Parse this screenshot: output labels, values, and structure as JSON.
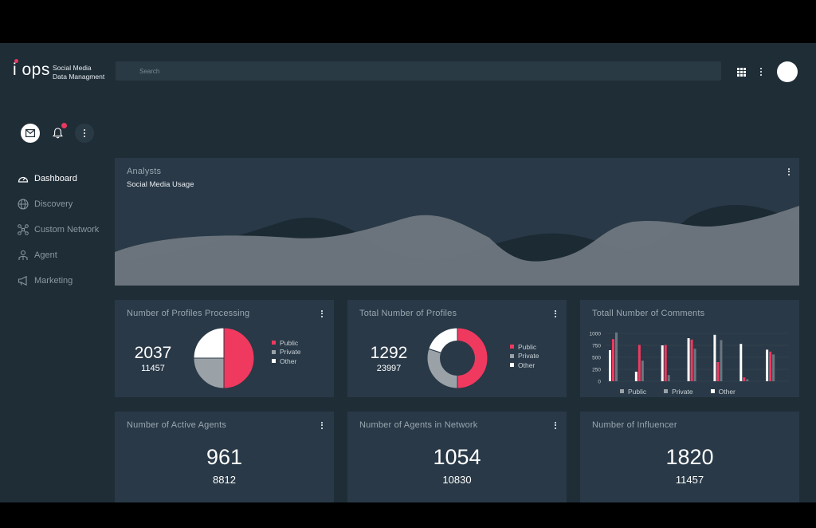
{
  "app": {
    "logo_text": "i ops",
    "subtitle_line1": "Social Media",
    "subtitle_line2": "Data Managment",
    "search_placeholder": "Search"
  },
  "sidebar": {
    "items": [
      {
        "label": "Dashboard",
        "icon": "speedometer-icon"
      },
      {
        "label": "Discovery",
        "icon": "globe-icon"
      },
      {
        "label": "Custom Network",
        "icon": "network-icon"
      },
      {
        "label": "Agent",
        "icon": "agent-icon"
      },
      {
        "label": "Marketing",
        "icon": "megaphone-icon"
      }
    ]
  },
  "analysts": {
    "title": "Analysts",
    "subtitle": "Social Media Usage"
  },
  "cards": {
    "profiles_processing": {
      "title": "Number of Profiles Processing",
      "value": "2037",
      "sub_value": "11457",
      "legend": [
        "Public",
        "Private",
        "Other"
      ]
    },
    "total_profiles": {
      "title": "Total Number of Profiles",
      "value": "1292",
      "sub_value": "23997",
      "legend": [
        "Public",
        "Private",
        "Other"
      ]
    },
    "total_comments": {
      "title": "Totall Number of Comments",
      "legend": [
        "Public",
        "Private",
        "Other"
      ]
    },
    "active_agents": {
      "title": "Number of Active Agents",
      "value": "961",
      "sub_value": "8812"
    },
    "agents_in_network": {
      "title": "Number of Agents in Network",
      "value": "1054",
      "sub_value": "10830"
    },
    "influencer": {
      "title": "Number of Influencer",
      "value": "1820",
      "sub_value": "11457"
    }
  },
  "colors": {
    "public": "#f0395f",
    "private": "#9aa2a8",
    "other": "#ffffff",
    "background": "#1f2d37",
    "card": "#293947"
  },
  "chart_data": [
    {
      "type": "pie",
      "categories": [
        "Public",
        "Private",
        "Other"
      ],
      "values": [
        50,
        25,
        25
      ]
    },
    {
      "type": "pie",
      "categories": [
        "Public",
        "Private",
        "Other"
      ],
      "values": [
        50,
        30,
        20
      ]
    },
    {
      "type": "bar",
      "categories": [
        "1",
        "2",
        "3",
        "4",
        "5",
        "6",
        "7"
      ],
      "ylim": [
        0,
        1000
      ],
      "yticks": [
        0,
        250,
        500,
        750,
        1000
      ],
      "series": [
        {
          "name": "Other",
          "values": [
            650,
            200,
            750,
            900,
            970,
            780,
            660
          ]
        },
        {
          "name": "Public",
          "values": [
            880,
            760,
            760,
            870,
            400,
            80,
            620
          ]
        },
        {
          "name": "Private",
          "values": [
            1020,
            430,
            130,
            680,
            860,
            40,
            560
          ]
        }
      ]
    }
  ]
}
